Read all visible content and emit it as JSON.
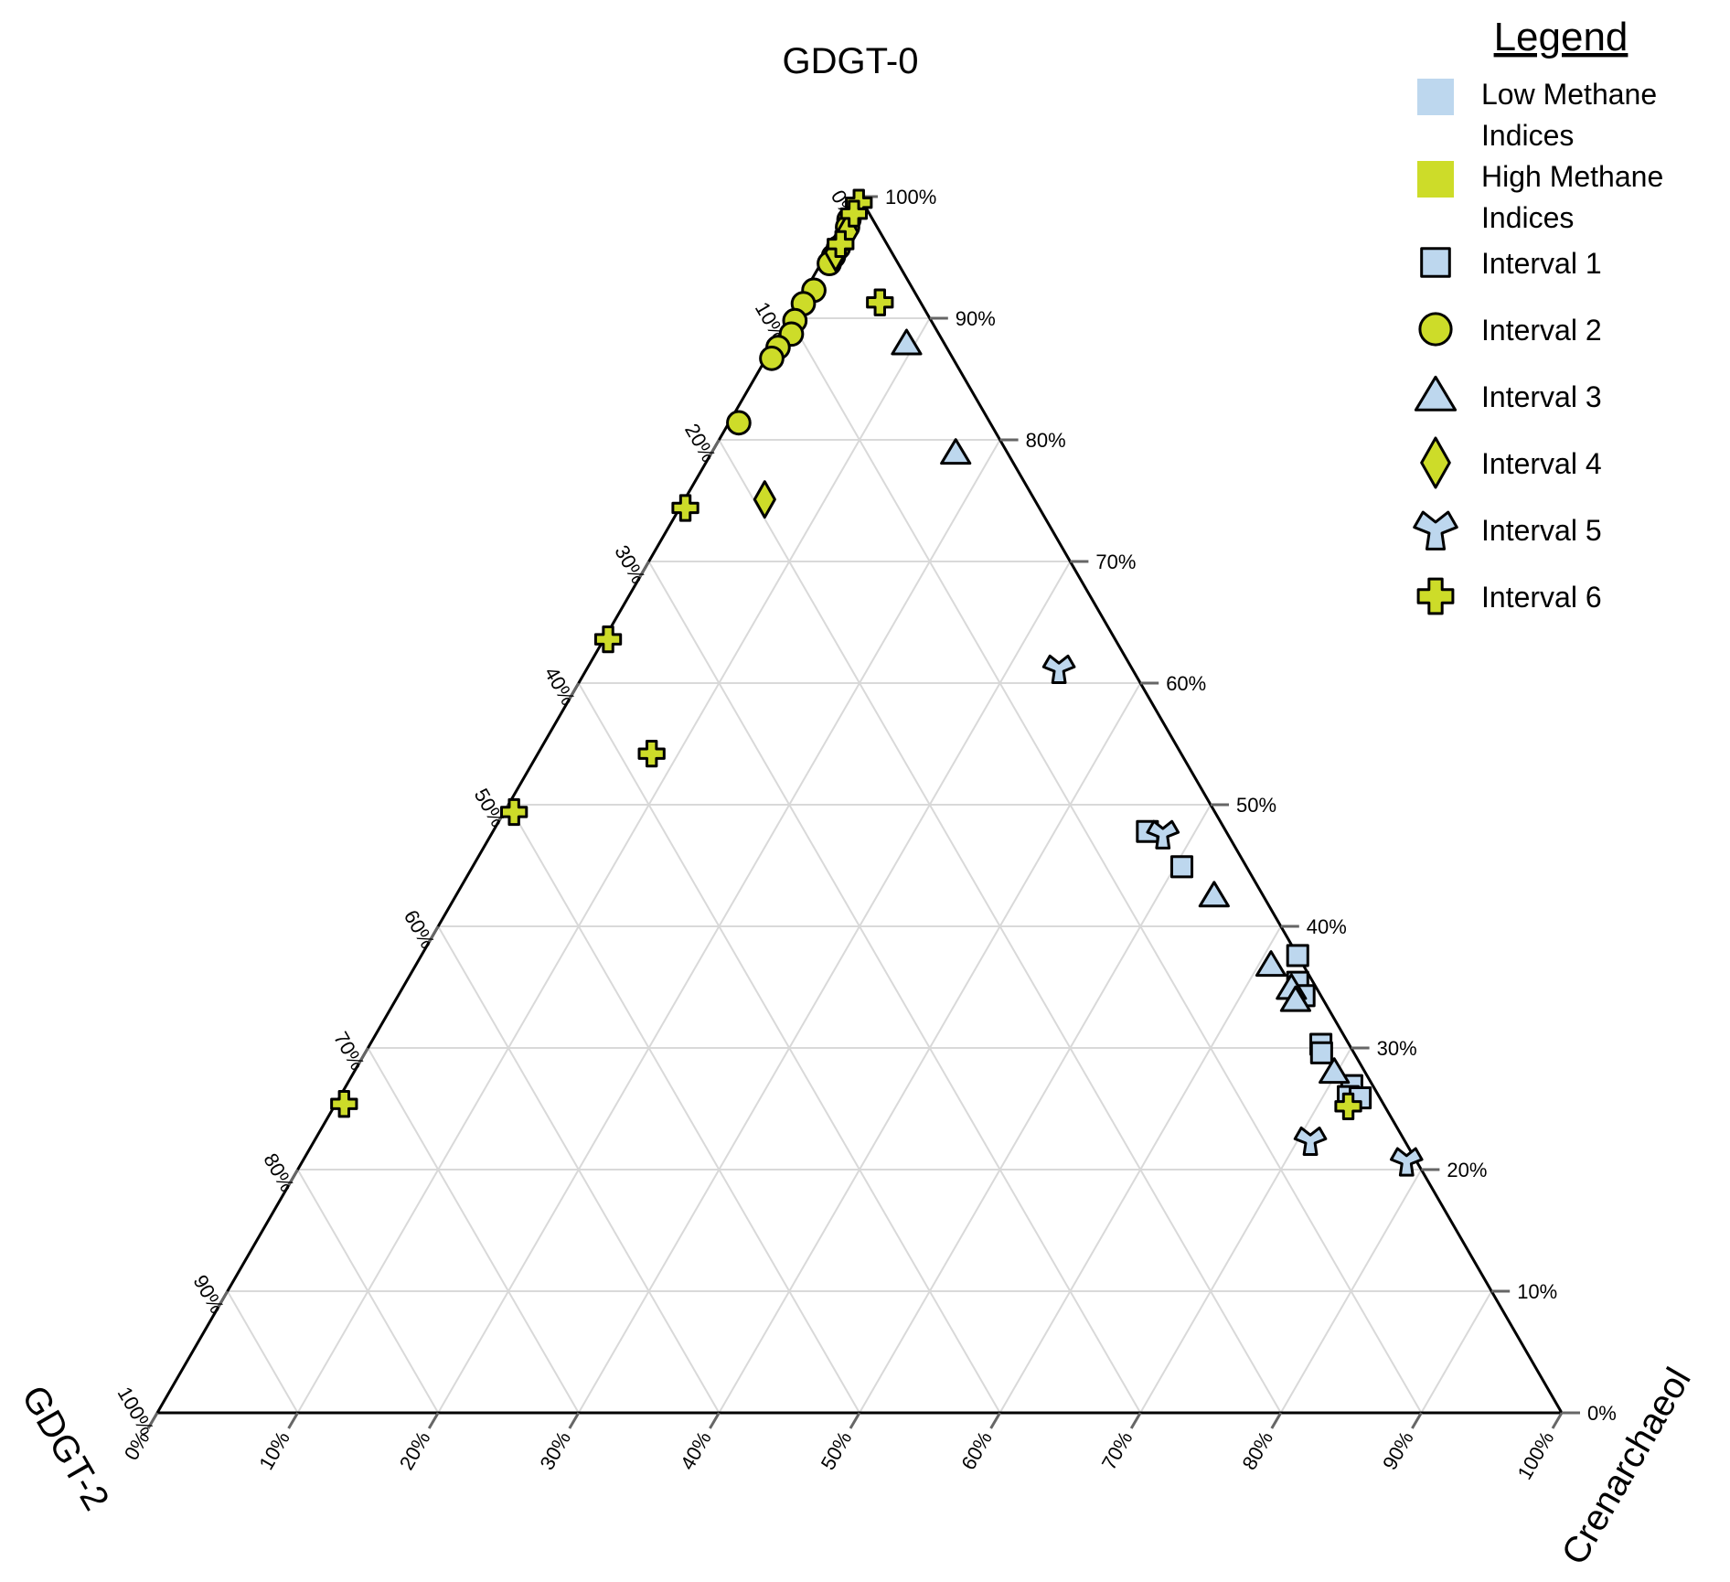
{
  "chart_data": {
    "type": "scatter",
    "subtype": "ternary",
    "axes": {
      "top": "GDGT-0",
      "left": "GDGT-2",
      "right": "Crenarchaeol"
    },
    "ticks": [
      "0%",
      "10%",
      "20%",
      "30%",
      "40%",
      "50%",
      "60%",
      "70%",
      "80%",
      "90%",
      "100%"
    ],
    "grid": true,
    "legend": {
      "title": "Legend",
      "position": "top-right",
      "color_entries": [
        {
          "label_lines": [
            "Low Methane",
            "Indices"
          ],
          "color": "#bdd7ee"
        },
        {
          "label_lines": [
            "High Methane",
            "Indices"
          ],
          "color": "#cddc29"
        }
      ],
      "shape_entries": [
        {
          "label": "Interval 1",
          "shape": "square",
          "color": "#bdd7ee"
        },
        {
          "label": "Interval 2",
          "shape": "circle",
          "color": "#cddc29"
        },
        {
          "label": "Interval 3",
          "shape": "triangle",
          "color": "#bdd7ee"
        },
        {
          "label": "Interval 4",
          "shape": "diamond",
          "color": "#cddc29"
        },
        {
          "label": "Interval 5",
          "shape": "tri-star",
          "color": "#bdd7ee"
        },
        {
          "label": "Interval 6",
          "shape": "cross",
          "color": "#cddc29"
        }
      ]
    },
    "series": [
      {
        "name": "Interval 1",
        "shape": "square",
        "color": "#bdd7ee",
        "points": [
          {
            "gdgt0": 47.8,
            "crenarchaeol": 46.6
          },
          {
            "gdgt0": 44.9,
            "crenarchaeol": 50.5
          },
          {
            "gdgt0": 37.6,
            "crenarchaeol": 62.4
          },
          {
            "gdgt0": 35.4,
            "crenarchaeol": 63.5
          },
          {
            "gdgt0": 34.3,
            "crenarchaeol": 64.5
          },
          {
            "gdgt0": 30.3,
            "crenarchaeol": 67.7
          },
          {
            "gdgt0": 29.6,
            "crenarchaeol": 68.1
          },
          {
            "gdgt0": 26.9,
            "crenarchaeol": 71.6
          },
          {
            "gdgt0": 26.0,
            "crenarchaeol": 71.8
          },
          {
            "gdgt0": 25.9,
            "crenarchaeol": 72.7
          }
        ]
      },
      {
        "name": "Interval 2",
        "shape": "circle",
        "color": "#cddc29",
        "points": [
          {
            "gdgt0": 98.1,
            "crenarchaeol": 0.2
          },
          {
            "gdgt0": 97.5,
            "crenarchaeol": 0.4
          },
          {
            "gdgt0": 95.8,
            "crenarchaeol": 0.6
          },
          {
            "gdgt0": 95.1,
            "crenarchaeol": 0.6
          },
          {
            "gdgt0": 94.5,
            "crenarchaeol": 0.6
          },
          {
            "gdgt0": 92.3,
            "crenarchaeol": 0.6
          },
          {
            "gdgt0": 91.2,
            "crenarchaeol": 0.4
          },
          {
            "gdgt0": 89.8,
            "crenarchaeol": 0.5
          },
          {
            "gdgt0": 88.7,
            "crenarchaeol": 0.8
          },
          {
            "gdgt0": 87.6,
            "crenarchaeol": 0.4
          },
          {
            "gdgt0": 86.7,
            "crenarchaeol": 0.4
          },
          {
            "gdgt0": 81.4,
            "crenarchaeol": 0.7
          }
        ]
      },
      {
        "name": "Interval 3",
        "shape": "triangle",
        "color": "#bdd7ee",
        "points": [
          {
            "gdgt0": 87.9,
            "crenarchaeol": 9.4
          },
          {
            "gdgt0": 78.9,
            "crenarchaeol": 17.4
          },
          {
            "gdgt0": 42.5,
            "crenarchaeol": 54.0
          },
          {
            "gdgt0": 36.8,
            "crenarchaeol": 60.9
          },
          {
            "gdgt0": 34.9,
            "crenarchaeol": 63.3
          },
          {
            "gdgt0": 33.9,
            "crenarchaeol": 64.1
          },
          {
            "gdgt0": 28.0,
            "crenarchaeol": 69.8
          }
        ]
      },
      {
        "name": "Interval 4",
        "shape": "diamond",
        "color": "#cddc29",
        "points": [
          {
            "gdgt0": 97.1,
            "crenarchaeol": 0.6
          },
          {
            "gdgt0": 95.4,
            "crenarchaeol": 0.6
          },
          {
            "gdgt0": 75.1,
            "crenarchaeol": 5.7
          }
        ]
      },
      {
        "name": "Interval 5",
        "shape": "tri-star",
        "color": "#bdd7ee",
        "points": [
          {
            "gdgt0": 61.2,
            "crenarchaeol": 33.6
          },
          {
            "gdgt0": 47.6,
            "crenarchaeol": 47.8
          },
          {
            "gdgt0": 22.4,
            "crenarchaeol": 70.9
          },
          {
            "gdgt0": 20.7,
            "crenarchaeol": 78.6
          }
        ]
      },
      {
        "name": "Interval 6",
        "shape": "cross",
        "color": "#cddc29",
        "points": [
          {
            "gdgt0": 99.5,
            "crenarchaeol": 0.2
          },
          {
            "gdgt0": 98.6,
            "crenarchaeol": 0.3
          },
          {
            "gdgt0": 96.1,
            "crenarchaeol": 0.6
          },
          {
            "gdgt0": 91.3,
            "crenarchaeol": 5.8
          },
          {
            "gdgt0": 74.4,
            "crenarchaeol": 0.4
          },
          {
            "gdgt0": 63.6,
            "crenarchaeol": 0.3
          },
          {
            "gdgt0": 54.2,
            "crenarchaeol": 8.1
          },
          {
            "gdgt0": 49.4,
            "crenarchaeol": 0.7
          },
          {
            "gdgt0": 25.4,
            "crenarchaeol": 0.6
          },
          {
            "gdgt0": 25.2,
            "crenarchaeol": 72.2
          }
        ]
      }
    ]
  }
}
